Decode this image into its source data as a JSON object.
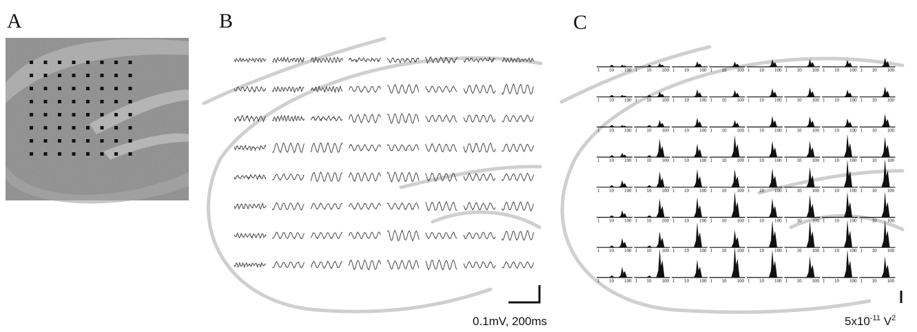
{
  "panels": {
    "a": {
      "label": "A"
    },
    "b": {
      "label": "B",
      "scale_bar": {
        "label": "0.1mV, 200ms"
      }
    },
    "c": {
      "label": "C",
      "spectrum_ticks": [
        "1",
        "10",
        "100"
      ],
      "scale_bar": {
        "base": "5x10",
        "exponent": "-11",
        "unit": " V",
        "unit_exponent": "2"
      }
    }
  }
}
